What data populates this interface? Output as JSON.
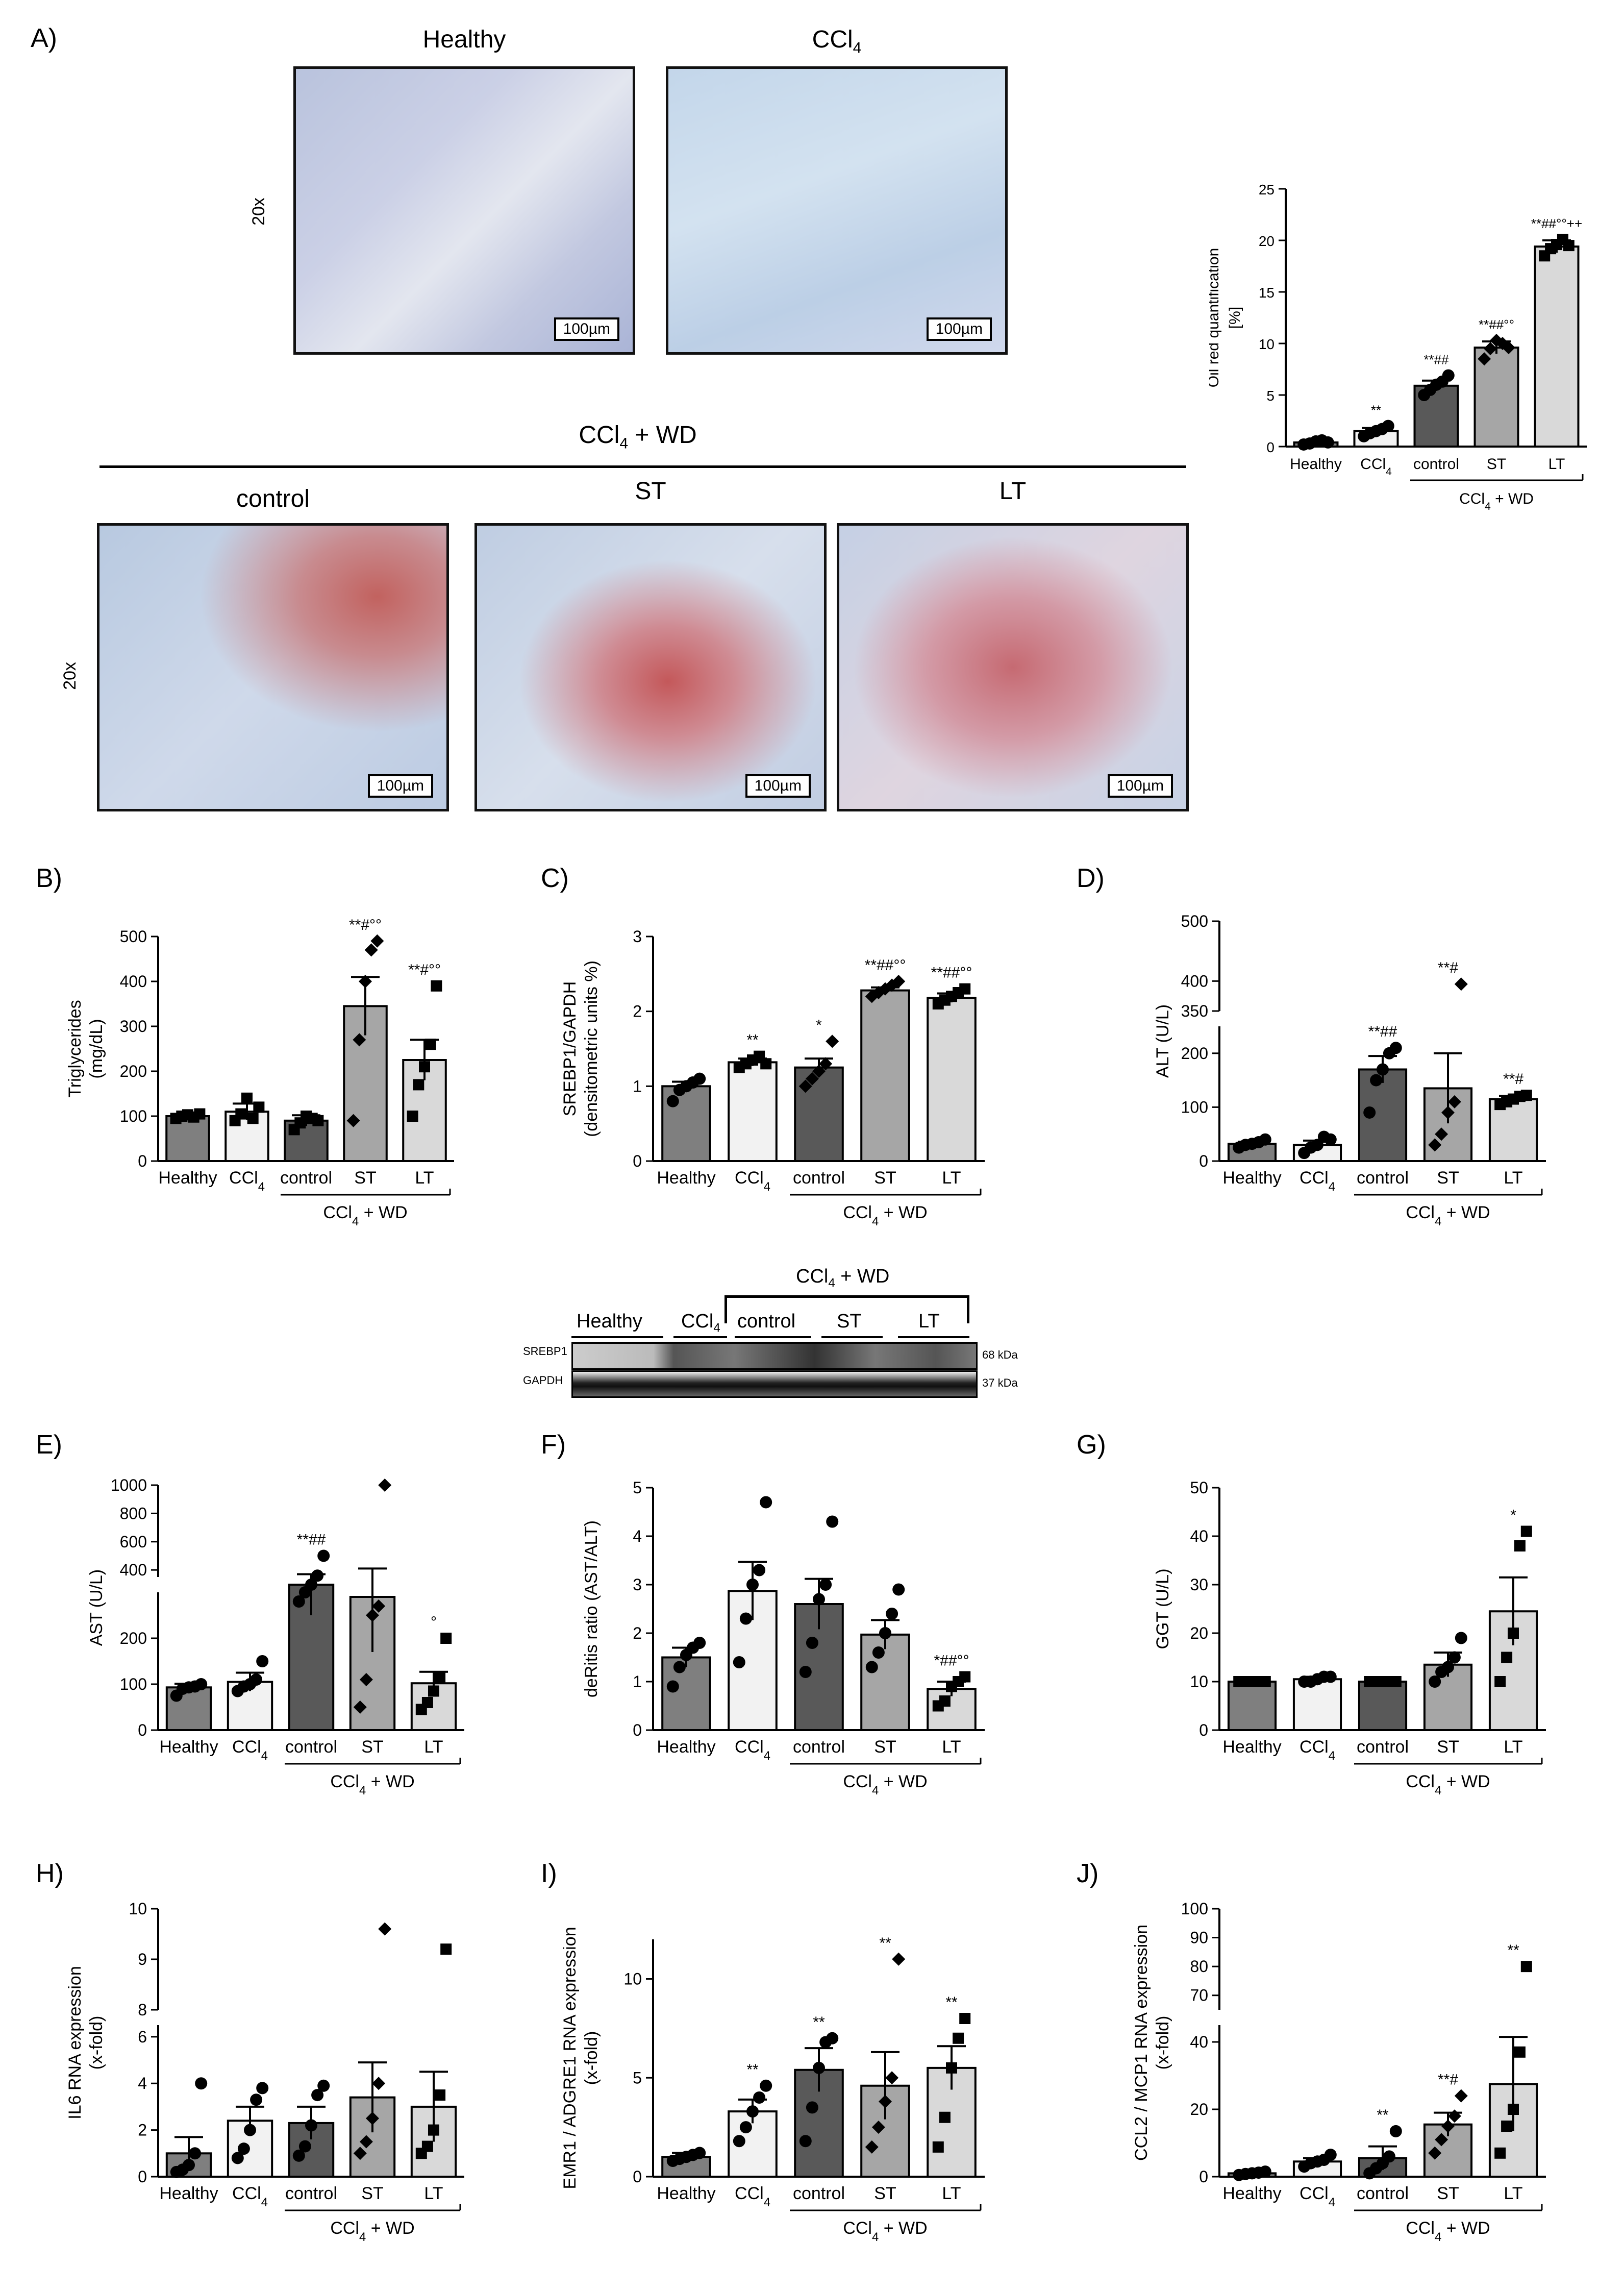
{
  "panel_A": {
    "letter": "A)",
    "top_titles": [
      "Healthy",
      "CCl4"
    ],
    "group_title": "CCl4 + WD",
    "bottom_titles": [
      "control",
      "ST",
      "LT"
    ],
    "magnification": "20x",
    "scale_bar": "100µm"
  },
  "blot": {
    "group_title": "CCl4 + WD",
    "lanes": [
      "Healthy",
      "CCl4",
      "control",
      "ST",
      "LT"
    ],
    "rows": [
      {
        "name": "SREBP1",
        "kda": "68 kDa"
      },
      {
        "name": "GAPDH",
        "kda": "37 kDa"
      }
    ]
  },
  "colors": {
    "healthy": "#7f7f7f",
    "ccl4": "#f2f2f2",
    "control": "#595959",
    "st": "#a6a6a6",
    "lt": "#d9d9d9"
  },
  "chart_data": [
    {
      "id": "A",
      "type": "bar",
      "letter": "",
      "ylabel": "Oil red quantification\n[%]",
      "categories": [
        "Healthy",
        "CCl4",
        "control",
        "ST",
        "LT"
      ],
      "group_label": "CCl4 + WD",
      "ylim": [
        0,
        25
      ],
      "yticks": [
        0,
        5,
        10,
        15,
        20,
        25
      ],
      "values": [
        0.4,
        1.5,
        5.9,
        9.6,
        19.4
      ],
      "errors": [
        0.1,
        0.3,
        0.5,
        0.6,
        0.6
      ],
      "points": [
        [
          0.2,
          0.3,
          0.5,
          0.6,
          0.4
        ],
        [
          1.0,
          1.3,
          1.5,
          1.7,
          2.0
        ],
        [
          5.0,
          5.5,
          6.0,
          6.3,
          6.9
        ],
        [
          8.5,
          9.5,
          10.3,
          10.0,
          9.6
        ],
        [
          18.5,
          19.2,
          19.6,
          20.1,
          19.5
        ]
      ],
      "markers": [
        "circle",
        "circle",
        "circle",
        "diamond",
        "square"
      ],
      "annotations": [
        "",
        "**",
        "**##",
        "**##°°",
        "**##°°++"
      ]
    },
    {
      "id": "B",
      "type": "bar",
      "letter": "B)",
      "ylabel": "Triglycerides\n(mg/dL)",
      "categories": [
        "Healthy",
        "CCl4",
        "control",
        "ST",
        "LT"
      ],
      "group_label": "CCl4 + WD",
      "ylim": [
        0,
        500
      ],
      "yticks": [
        0,
        100,
        200,
        300,
        400,
        500
      ],
      "values": [
        100,
        110,
        90,
        345,
        225
      ],
      "errors": [
        5,
        18,
        12,
        65,
        45
      ],
      "points": [
        [
          95,
          100,
          103,
          98,
          105
        ],
        [
          90,
          105,
          140,
          95,
          120
        ],
        [
          70,
          85,
          100,
          95,
          90
        ],
        [
          90,
          270,
          400,
          470,
          490
        ],
        [
          100,
          170,
          210,
          260,
          390
        ]
      ],
      "markers": [
        "square",
        "square",
        "square",
        "diamond",
        "square"
      ],
      "annotations": [
        "",
        "",
        "",
        "**#°°",
        "**#°°"
      ]
    },
    {
      "id": "C",
      "type": "bar",
      "letter": "C)",
      "ylabel": "SREBP1/GAPDH\n(densitometric units %)",
      "categories": [
        "Healthy",
        "CCl4",
        "control",
        "ST",
        "LT"
      ],
      "group_label": "CCl4 + WD",
      "ylim": [
        0,
        3
      ],
      "yticks": [
        0,
        1,
        2,
        3
      ],
      "values": [
        1.0,
        1.32,
        1.25,
        2.28,
        2.18
      ],
      "errors": [
        0.06,
        0.05,
        0.12,
        0.04,
        0.06
      ],
      "points": [
        [
          0.8,
          0.95,
          1.0,
          1.05,
          1.1
        ],
        [
          1.25,
          1.3,
          1.35,
          1.4,
          1.3
        ],
        [
          1.0,
          1.1,
          1.2,
          1.3,
          1.6
        ],
        [
          2.2,
          2.25,
          2.3,
          2.35,
          2.4
        ],
        [
          2.1,
          2.15,
          2.2,
          2.25,
          2.3
        ]
      ],
      "markers": [
        "circle",
        "square",
        "diamond",
        "diamond",
        "square"
      ],
      "annotations": [
        "",
        "**",
        "*",
        "**##°°",
        "**##°°"
      ]
    },
    {
      "id": "D",
      "type": "bar",
      "letter": "D)",
      "ylabel": "ALT (U/L)",
      "categories": [
        "Healthy",
        "CCl4",
        "control",
        "ST",
        "LT"
      ],
      "group_label": "CCl4 + WD",
      "ylim": [
        0,
        500
      ],
      "yticks": [
        0,
        100,
        200,
        350,
        400,
        500
      ],
      "break": [
        250,
        350
      ],
      "values": [
        32,
        30,
        170,
        135,
        115
      ],
      "errors": [
        4,
        8,
        25,
        65,
        6
      ],
      "points": [
        [
          25,
          30,
          32,
          35,
          40
        ],
        [
          15,
          25,
          30,
          45,
          40
        ],
        [
          90,
          150,
          170,
          200,
          210
        ],
        [
          30,
          50,
          90,
          110,
          395
        ],
        [
          105,
          110,
          115,
          120,
          122
        ]
      ],
      "markers": [
        "circle",
        "circle",
        "circle",
        "diamond",
        "square"
      ],
      "annotations": [
        "",
        "",
        "**##",
        "**#",
        "**#"
      ]
    },
    {
      "id": "E",
      "type": "bar",
      "letter": "E)",
      "ylabel": "AST (U/L)",
      "categories": [
        "Healthy",
        "CCl4",
        "control",
        "ST",
        "LT"
      ],
      "group_label": "CCl4 + WD",
      "ylim": [
        0,
        1000
      ],
      "yticks": [
        0,
        100,
        200,
        400,
        600,
        800,
        1000
      ],
      "break": [
        300,
        350
      ],
      "values": [
        93,
        105,
        310,
        290,
        102
      ],
      "errors": [
        8,
        20,
        60,
        120,
        25
      ],
      "points": [
        [
          75,
          90,
          93,
          95,
          100
        ],
        [
          85,
          95,
          100,
          110,
          150
        ],
        [
          280,
          300,
          330,
          360,
          500
        ],
        [
          50,
          110,
          250,
          270,
          1000
        ],
        [
          45,
          60,
          85,
          115,
          200
        ]
      ],
      "markers": [
        "circle",
        "circle",
        "circle",
        "diamond",
        "square"
      ],
      "annotations": [
        "",
        "",
        "**##",
        "",
        "°"
      ]
    },
    {
      "id": "F",
      "type": "bar",
      "letter": "F)",
      "ylabel": "deRitis ratio (AST/ALT)",
      "categories": [
        "Healthy",
        "CCl4",
        "control",
        "ST",
        "LT"
      ],
      "group_label": "CCl4 + WD",
      "ylim": [
        0,
        5
      ],
      "yticks": [
        0,
        1,
        2,
        3,
        4,
        5
      ],
      "values": [
        1.5,
        2.87,
        2.6,
        1.97,
        0.85
      ],
      "errors": [
        0.2,
        0.6,
        0.52,
        0.3,
        0.15
      ],
      "points": [
        [
          0.9,
          1.3,
          1.55,
          1.7,
          1.8
        ],
        [
          1.4,
          2.3,
          3.0,
          3.3,
          4.7
        ],
        [
          1.2,
          1.8,
          2.7,
          3.0,
          4.3
        ],
        [
          1.3,
          1.6,
          2.0,
          2.4,
          2.9
        ],
        [
          0.5,
          0.6,
          0.9,
          1.0,
          1.1
        ]
      ],
      "markers": [
        "circle",
        "circle",
        "circle",
        "circle",
        "square"
      ],
      "annotations": [
        "",
        "",
        "",
        "",
        "*##°°"
      ]
    },
    {
      "id": "G",
      "type": "bar",
      "letter": "G)",
      "ylabel": "GGT (U/L)",
      "categories": [
        "Healthy",
        "CCl4",
        "control",
        "ST",
        "LT"
      ],
      "group_label": "CCl4 + WD",
      "ylim": [
        0,
        50
      ],
      "yticks": [
        0,
        10,
        20,
        30,
        40,
        50
      ],
      "values": [
        10,
        10.5,
        10,
        13.5,
        24.5
      ],
      "errors": [
        0,
        0.5,
        0,
        2.5,
        7
      ],
      "points": [
        [
          10,
          10,
          10,
          10,
          10
        ],
        [
          10,
          10,
          10.5,
          11,
          11
        ],
        [
          10,
          10,
          10,
          10,
          10
        ],
        [
          10,
          12,
          13,
          15,
          19
        ],
        [
          10,
          15,
          20,
          38,
          41
        ]
      ],
      "markers": [
        "square",
        "circle",
        "square",
        "circle",
        "square"
      ],
      "annotations": [
        "",
        "",
        "",
        "",
        "*"
      ]
    },
    {
      "id": "H",
      "type": "bar",
      "letter": "H)",
      "ylabel": "IL6 RNA expression\n(x-fold)",
      "categories": [
        "Healthy",
        "CCl4",
        "control",
        "ST",
        "LT"
      ],
      "group_label": "CCl4 + WD",
      "ylim": [
        0,
        10
      ],
      "yticks": [
        0,
        2,
        4,
        6,
        8,
        9,
        10
      ],
      "break": [
        6.5,
        8
      ],
      "values": [
        1.0,
        2.4,
        2.3,
        3.4,
        3.0
      ],
      "errors": [
        0.7,
        0.6,
        0.7,
        1.5,
        1.5
      ],
      "points": [
        [
          0.2,
          0.3,
          0.5,
          1.0,
          4.0
        ],
        [
          0.8,
          1.2,
          2.0,
          3.3,
          3.8
        ],
        [
          0.9,
          1.3,
          2.2,
          3.5,
          3.9
        ],
        [
          1.0,
          1.5,
          2.5,
          4.0,
          9.6
        ],
        [
          1.0,
          1.3,
          2.0,
          3.5,
          9.2
        ]
      ],
      "markers": [
        "circle",
        "circle",
        "circle",
        "diamond",
        "square"
      ],
      "annotations": [
        "",
        "",
        "",
        "",
        ""
      ]
    },
    {
      "id": "I",
      "type": "bar",
      "letter": "I)",
      "ylabel": "EMR1 / ADGRE1 RNA expression\n(x-fold)",
      "categories": [
        "Healthy",
        "CCl4",
        "control",
        "ST",
        "LT"
      ],
      "group_label": "CCl4 + WD",
      "ylim": [
        0,
        12
      ],
      "yticks": [
        0,
        5,
        10
      ],
      "values": [
        1.0,
        3.3,
        5.4,
        4.6,
        5.5
      ],
      "errors": [
        0.2,
        0.6,
        1.1,
        1.7,
        1.1
      ],
      "points": [
        [
          0.8,
          0.9,
          1.0,
          1.1,
          1.2
        ],
        [
          1.8,
          2.5,
          3.3,
          4.0,
          4.6
        ],
        [
          1.8,
          3.5,
          5.5,
          6.8,
          7.0
        ],
        [
          1.5,
          2.5,
          3.8,
          5.0,
          11.0
        ],
        [
          1.5,
          3.0,
          5.5,
          7.0,
          8.0
        ]
      ],
      "markers": [
        "circle",
        "circle",
        "circle",
        "diamond",
        "square"
      ],
      "annotations": [
        "",
        "**",
        "**",
        "**",
        "**"
      ]
    },
    {
      "id": "J",
      "type": "bar",
      "letter": "J)",
      "ylabel": "CCL2 / MCP1 RNA expression\n(x-fold)",
      "categories": [
        "Healthy",
        "CCl4",
        "control",
        "ST",
        "LT"
      ],
      "group_label": "CCl4 + WD",
      "ylim": [
        0,
        100
      ],
      "yticks": [
        0,
        20,
        40,
        70,
        80,
        90,
        100
      ],
      "break": [
        45,
        65
      ],
      "values": [
        1.0,
        4.5,
        5.5,
        15.5,
        27.5
      ],
      "errors": [
        0.3,
        1.0,
        3.5,
        3.5,
        14
      ],
      "points": [
        [
          0.5,
          0.8,
          1.0,
          1.2,
          1.5
        ],
        [
          3.0,
          4.0,
          4.5,
          5.0,
          6.5
        ],
        [
          1.0,
          2.5,
          4.0,
          6.0,
          13.5
        ],
        [
          7.0,
          11.0,
          15.0,
          18.0,
          24.0
        ],
        [
          7.0,
          15.0,
          20.0,
          37.0,
          80.0
        ]
      ],
      "markers": [
        "circle",
        "circle",
        "circle",
        "diamond",
        "square"
      ],
      "annotations": [
        "",
        "",
        "**",
        "**#",
        "**"
      ]
    }
  ]
}
